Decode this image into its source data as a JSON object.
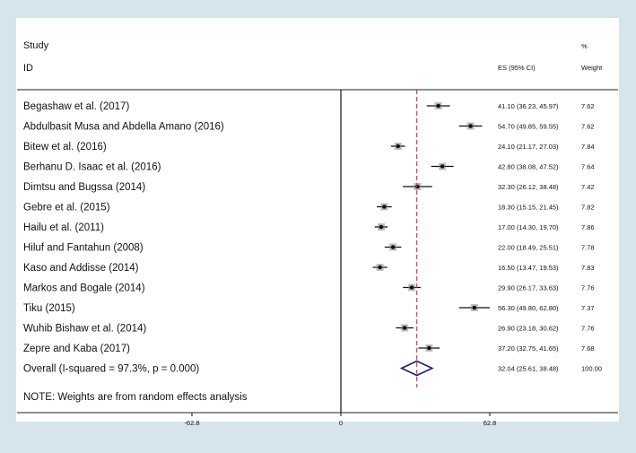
{
  "chart_data": {
    "type": "forest",
    "header": {
      "study": "Study",
      "id": "ID",
      "es": "ES (95% CI)",
      "pct": "%",
      "weight": "Weight"
    },
    "studies": [
      {
        "name": "Begashaw et al. (2017)",
        "es": 41.1,
        "lo": 36.23,
        "hi": 45.97,
        "ci_text": "41.10 (36.23, 45.97)",
        "weight": "7.62"
      },
      {
        "name": "Abdulbasit Musa and Abdella Amano (2016)",
        "es": 54.7,
        "lo": 49.85,
        "hi": 59.55,
        "ci_text": "54.70 (49.85, 59.55)",
        "weight": "7.62"
      },
      {
        "name": "Bitew et al. (2016)",
        "es": 24.1,
        "lo": 21.17,
        "hi": 27.03,
        "ci_text": "24.10 (21.17, 27.03)",
        "weight": "7.84"
      },
      {
        "name": "Berhanu D. Isaac et al. (2016)",
        "es": 42.8,
        "lo": 38.08,
        "hi": 47.52,
        "ci_text": "42.80 (38.08, 47.52)",
        "weight": "7.64"
      },
      {
        "name": "Dimtsu and Bugssa (2014)",
        "es": 32.3,
        "lo": 26.12,
        "hi": 38.48,
        "ci_text": "32.30 (26.12, 38.48)",
        "weight": "7.42"
      },
      {
        "name": "Gebre et al. (2015)",
        "es": 18.3,
        "lo": 15.15,
        "hi": 21.45,
        "ci_text": "18.30 (15.15, 21.45)",
        "weight": "7.82"
      },
      {
        "name": "Hailu et al. (2011)",
        "es": 17.0,
        "lo": 14.3,
        "hi": 19.7,
        "ci_text": "17.00 (14.30, 19.70)",
        "weight": "7.86"
      },
      {
        "name": "Hiluf and Fantahun (2008)",
        "es": 22.0,
        "lo": 18.49,
        "hi": 25.51,
        "ci_text": "22.00 (18.49, 25.51)",
        "weight": "7.78"
      },
      {
        "name": "Kaso and Addisse (2014)",
        "es": 16.5,
        "lo": 13.47,
        "hi": 19.53,
        "ci_text": "16.50 (13.47, 19.53)",
        "weight": "7.83"
      },
      {
        "name": "Markos and Bogale (2014)",
        "es": 29.9,
        "lo": 26.17,
        "hi": 33.63,
        "ci_text": "29.90 (26.17, 33.63)",
        "weight": "7.76"
      },
      {
        "name": "Tiku (2015)",
        "es": 56.3,
        "lo": 49.8,
        "hi": 62.8,
        "ci_text": "56.30 (49.80, 62.80)",
        "weight": "7.37"
      },
      {
        "name": "Wuhib Bishaw et al. (2014)",
        "es": 26.9,
        "lo": 23.18,
        "hi": 30.62,
        "ci_text": "26.90 (23.18, 30.62)",
        "weight": "7.76"
      },
      {
        "name": "Zepre and Kaba (2017)",
        "es": 37.2,
        "lo": 32.75,
        "hi": 41.65,
        "ci_text": "37.20 (32.75, 41.65)",
        "weight": "7.68"
      }
    ],
    "overall": {
      "label": "Overall  (I-squared = 97.3%, p = 0.000)",
      "es": 32.04,
      "lo": 25.61,
      "hi": 38.48,
      "ci_text": "32.04 (25.61, 38.48)",
      "weight": "100.00"
    },
    "note": "NOTE: Weights are from random effects analysis",
    "x_ticks": [
      {
        "value": -62.8,
        "label": "-62.8"
      },
      {
        "value": 0,
        "label": "0"
      },
      {
        "value": 62.8,
        "label": "62.8"
      }
    ],
    "xlim": [
      -62.8,
      62.8
    ],
    "null_line": 0,
    "colors": {
      "point": "#111111",
      "diamond": "#1a1a6e",
      "overall_line": "#b0384a",
      "frame_bg": "#d6e4ec"
    }
  }
}
